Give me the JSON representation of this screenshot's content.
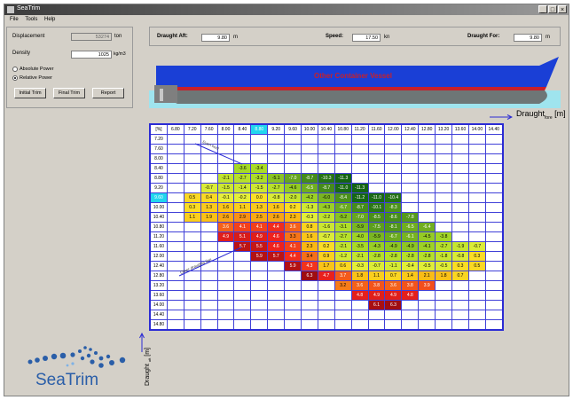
{
  "window": {
    "title": "SeaTrim"
  },
  "menu": [
    "File",
    "Tools",
    "Help"
  ],
  "left_panel": {
    "displacement_label": "Displacement",
    "displacement_value": "53274",
    "displacement_unit": "ton",
    "density_label": "Density",
    "density_value": "1025",
    "density_unit": "kg/m3",
    "radio_absolute": "Absolute Power",
    "radio_relative": "Relative Power",
    "selected_radio": "Relative Power",
    "buttons": [
      "Initial Trim",
      "Final Trim",
      "Report"
    ]
  },
  "top_panel": {
    "draught_aft_label": "Draught Aft:",
    "draught_aft_value": "9.80",
    "draught_aft_unit": "m",
    "speed_label": "Speed:",
    "speed_value": "17.50",
    "speed_unit": "kn",
    "draught_fore_label": "Draught For:",
    "draught_fore_value": "9.80",
    "draught_fore_unit": "m"
  },
  "ship": {
    "label": "Other Container Vessel",
    "hull_color": "#1a3fd6",
    "waterline_color": "#c8202a",
    "water_color": "#9fe4ee"
  },
  "axis": {
    "draught_fore_label": "Draught",
    "draught_fore_sub": "fore",
    "draught_fore_unit": "[m]",
    "draught_aft_label": "Draught",
    "draught_aft_sub": "aft",
    "draught_aft_unit": "[m]"
  },
  "diagonal_labels": [
    "Even keel",
    "Other draughts line"
  ],
  "logo": {
    "text": "SeaTrim"
  },
  "colors": {
    "grid_border": "#2b2bd4",
    "highlight": "#22d6ee"
  },
  "chart_data": {
    "type": "heatmap",
    "corner": "[%]",
    "columns": [
      "6.80",
      "7.20",
      "7.60",
      "8.00",
      "8.40",
      "8.80",
      "9.20",
      "9.60",
      "10.00",
      "10.40",
      "10.80",
      "11.20",
      "11.60",
      "12.00",
      "12.40",
      "12.80",
      "13.20",
      "13.60",
      "14.00",
      "14.40"
    ],
    "rows": [
      "7.20",
      "7.60",
      "8.00",
      "8.40",
      "8.80",
      "9.20",
      "9.60",
      "10.00",
      "10.40",
      "10.80",
      "11.20",
      "11.60",
      "12.00",
      "12.40",
      "12.80",
      "13.20",
      "13.60",
      "14.00",
      "14.40",
      "14.80"
    ],
    "highlight_row": "9.60",
    "highlight_col": "8.80",
    "cells": [
      [
        "",
        "",
        "",
        "",
        "",
        "",
        "",
        "",
        "",
        "",
        "",
        "",
        "",
        "",
        "",
        "",
        "",
        "",
        "",
        ""
      ],
      [
        "",
        "",
        "",
        "",
        "",
        "",
        "",
        "",
        "",
        "",
        "",
        "",
        "",
        "",
        "",
        "",
        "",
        "",
        "",
        ""
      ],
      [
        "",
        "",
        "",
        "",
        "",
        "",
        "",
        "",
        "",
        "",
        "",
        "",
        "",
        "",
        "",
        "",
        "",
        "",
        "",
        ""
      ],
      [
        "",
        "",
        "",
        "",
        "-3.6",
        "-3.4",
        "",
        "",
        "",
        "",
        "",
        "",
        "",
        "",
        "",
        "",
        "",
        "",
        "",
        ""
      ],
      [
        "",
        "",
        "",
        "-2.1",
        "-2.7",
        "-3.2",
        "-5.1",
        "-7.0",
        "-8.7",
        "-10.3",
        "-11.3",
        "",
        "",
        "",
        "",
        "",
        "",
        "",
        "",
        ""
      ],
      [
        "",
        "",
        "-0.7",
        "-1.5",
        "-1.4",
        "-1.5",
        "-2.7",
        "-4.6",
        "-6.5",
        "-8.7",
        "-11.0",
        "-11.3",
        "",
        "",
        "",
        "",
        "",
        "",
        "",
        ""
      ],
      [
        "",
        "0.5",
        "0.4",
        "-0.1",
        "-0.2",
        "0.0",
        "-0.8",
        "-2.0",
        "-4.2",
        "-6.0",
        "-8.4",
        "-11.2",
        "-11.0",
        "-10.4",
        "",
        "",
        "",
        "",
        "",
        ""
      ],
      [
        "",
        "0.3",
        "1.3",
        "1.6",
        "1.1",
        "1.3",
        "1.6",
        "0.2",
        "-1.3",
        "-4.3",
        "-6.7",
        "-8.7",
        "-10.1",
        "-8.3",
        "",
        "",
        "",
        "",
        "",
        ""
      ],
      [
        "",
        "1.1",
        "1.9",
        "2.6",
        "2.9",
        "2.5",
        "2.6",
        "2.3",
        "-0.3",
        "-2.2",
        "-5.2",
        "-7.0",
        "-8.5",
        "-8.6",
        "-7.8",
        "",
        "",
        "",
        "",
        ""
      ],
      [
        "",
        "",
        "",
        "3.6",
        "4.1",
        "4.1",
        "4.4",
        "3.6",
        "0.8",
        "-1.6",
        "-3.1",
        "-5.9",
        "-7.5",
        "-8.1",
        "-6.5",
        "-6.4",
        "",
        "",
        "",
        ""
      ],
      [
        "",
        "",
        "",
        "4.9",
        "5.1",
        "4.9",
        "4.6",
        "3.3",
        "1.6",
        "-0.7",
        "-2.7",
        "-4.0",
        "-5.9",
        "-6.7",
        "-6.1",
        "-4.5",
        "-3.8",
        "",
        "",
        ""
      ],
      [
        "",
        "",
        "",
        "",
        "5.7",
        "5.5",
        "4.6",
        "4.1",
        "2.3",
        "0.2",
        "-2.1",
        "-3.5",
        "-4.3",
        "-4.9",
        "-4.9",
        "-4.1",
        "-2.7",
        "-1.9",
        "-0.7",
        ""
      ],
      [
        "",
        "",
        "",
        "",
        "",
        "5.9",
        "5.7",
        "4.4",
        "3.4",
        "0.9",
        "-1.2",
        "-2.1",
        "-2.8",
        "-2.8",
        "-2.8",
        "-2.8",
        "-1.8",
        "-0.8",
        "0.3",
        ""
      ],
      [
        "",
        "",
        "",
        "",
        "",
        "",
        "",
        "5.9",
        "4.3",
        "1.7",
        "0.6",
        "-0.3",
        "-0.7",
        "-1.1",
        "-0.4",
        "-0.5",
        "-0.5",
        "0.3",
        "0.5",
        ""
      ],
      [
        "",
        "",
        "",
        "",
        "",
        "",
        "",
        "",
        "6.3",
        "4.7",
        "3.7",
        "1.8",
        "1.1",
        "0.7",
        "1.4",
        "2.1",
        "1.8",
        "0.7",
        "",
        ""
      ],
      [
        "",
        "",
        "",
        "",
        "",
        "",
        "",
        "",
        "",
        "",
        "3.2",
        "3.6",
        "3.8",
        "3.6",
        "3.8",
        "3.9",
        "",
        "",
        "",
        ""
      ],
      [
        "",
        "",
        "",
        "",
        "",
        "",
        "",
        "",
        "",
        "",
        "",
        "4.8",
        "4.9",
        "4.9",
        "4.8",
        "",
        "",
        "",
        "",
        ""
      ],
      [
        "",
        "",
        "",
        "",
        "",
        "",
        "",
        "",
        "",
        "",
        "",
        "",
        "6.1",
        "6.3",
        "",
        "",
        "",
        "",
        "",
        ""
      ],
      [
        "",
        "",
        "",
        "",
        "",
        "",
        "",
        "",
        "",
        "",
        "",
        "",
        "",
        "",
        "",
        "",
        "",
        "",
        "",
        ""
      ],
      [
        "",
        "",
        "",
        "",
        "",
        "",
        "",
        "",
        "",
        "",
        "",
        "",
        "",
        "",
        "",
        "",
        "",
        "",
        "",
        ""
      ]
    ]
  }
}
